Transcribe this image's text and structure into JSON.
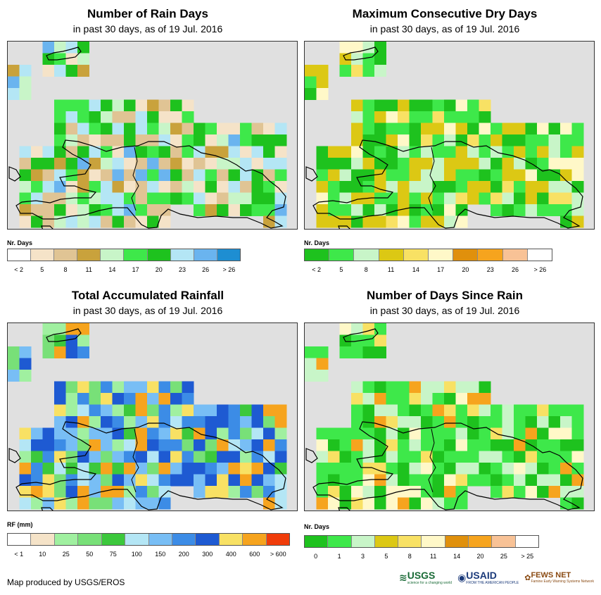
{
  "panels": [
    {
      "id": "rain-days",
      "title": "Number of Rain Days",
      "subtitle": "in past 30 days, as of 19 Jul. 2016",
      "legend_title": "Nr. Days",
      "legend_labels": [
        "< 2",
        "5",
        "8",
        "11",
        "14",
        "17",
        "20",
        "23",
        "26",
        "> 26"
      ],
      "legend_colors": [
        "#ffffff",
        "#f5e3c8",
        "#e0c494",
        "#c9a23c",
        "#c8f5c8",
        "#3ee84a",
        "#1ec21e",
        "#b4e6f5",
        "#6ab4ef",
        "#1e8ed2"
      ],
      "grid": [
        "..11........",
        ".1.........."
      ]
    },
    {
      "id": "dry-days",
      "title": "Maximum Consecutive Dry Days",
      "subtitle": "in past 30 days, as of 19 Jul. 2016",
      "legend_title": "Nr. Days",
      "legend_labels": [
        "< 2",
        "5",
        "8",
        "11",
        "14",
        "17",
        "20",
        "23",
        "26",
        "> 26"
      ],
      "legend_colors": [
        "#1ec21e",
        "#3ee84a",
        "#c8f5c8",
        "#dcc814",
        "#f8e164",
        "#fff8c8",
        "#e0900c",
        "#f6a41e",
        "#f8c296",
        "#ffffff"
      ]
    },
    {
      "id": "rainfall",
      "title": "Total Accumulated Rainfall",
      "subtitle": "in past 30 days, as of 19 Jul. 2016",
      "legend_title": "RF (mm)",
      "legend_labels": [
        "< 1",
        "10",
        "25",
        "50",
        "75",
        "100",
        "150",
        "200",
        "300",
        "400",
        "600",
        "> 600"
      ],
      "legend_colors": [
        "#ffffff",
        "#f5e3c8",
        "#a0f0a0",
        "#78e078",
        "#3cc83c",
        "#b4e6f5",
        "#78bef5",
        "#3c8ce6",
        "#1e5ad2",
        "#f8e164",
        "#f6a41e",
        "#f03c0a"
      ]
    },
    {
      "id": "days-since-rain",
      "title": "Number of Days Since Rain",
      "subtitle": "in past 30 days, as of 19 Jul. 2016",
      "legend_title": "Nr. Days",
      "legend_labels": [
        "0",
        "1",
        "3",
        "5",
        "8",
        "11",
        "14",
        "20",
        "25",
        "> 25"
      ],
      "legend_colors": [
        "#1ec21e",
        "#3ee84a",
        "#c8f5c8",
        "#dcc814",
        "#f8e164",
        "#fff8c8",
        "#e0900c",
        "#f6a41e",
        "#f8c296",
        "#ffffff"
      ]
    }
  ],
  "credit": "Map produced by USGS/EROS",
  "logos": {
    "usgs": "USGS",
    "usgs_tagline": "science for a changing world",
    "usaid": "USAID",
    "usaid_tagline": "FROM THE AMERICAN PEOPLE",
    "fews": "FEWS NET",
    "fews_tagline": "Famine Early Warning Systems Network"
  }
}
